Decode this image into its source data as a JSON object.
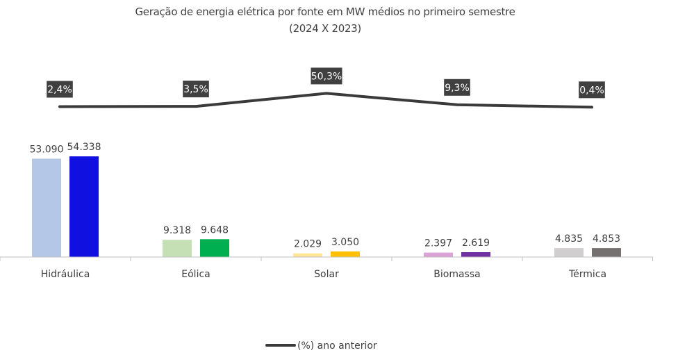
{
  "chart_data": {
    "type": "bar",
    "title": "Geração de energia elétrica por fonte em MW médios no primeiro semestre",
    "subtitle": "(2024 X 2023)",
    "categories": [
      "Hidráulica",
      "Eólica",
      "Solar",
      "Biomassa",
      "Térmica"
    ],
    "series": [
      {
        "values": [
          53090,
          9318,
          2029,
          2397,
          4835
        ],
        "labels": [
          "53.090",
          "9.318",
          "2.029",
          "2.397",
          "4.835"
        ],
        "colors": [
          "#b4c7e7",
          "#c5e0b4",
          "#ffe699",
          "#dba2d6",
          "#d0cece"
        ]
      },
      {
        "values": [
          54338,
          9648,
          3050,
          2619,
          4853
        ],
        "labels": [
          "54.338",
          "9.648",
          "3.050",
          "2.619",
          "4.853"
        ],
        "colors": [
          "#1010e0",
          "#00b050",
          "#ffc000",
          "#7030a0",
          "#767171"
        ]
      }
    ],
    "line_series": {
      "name": "(%) ano anterior",
      "values": [
        2.4,
        3.5,
        50.3,
        9.3,
        0.4
      ],
      "labels": [
        "2,4%",
        "3,5%",
        "50,3%",
        "9,3%",
        "0,4%"
      ],
      "color": "#3a3a3a",
      "label_bg": "#404040"
    },
    "ylim": [
      0,
      60000
    ],
    "grid": false,
    "legend": "bottom-center"
  }
}
